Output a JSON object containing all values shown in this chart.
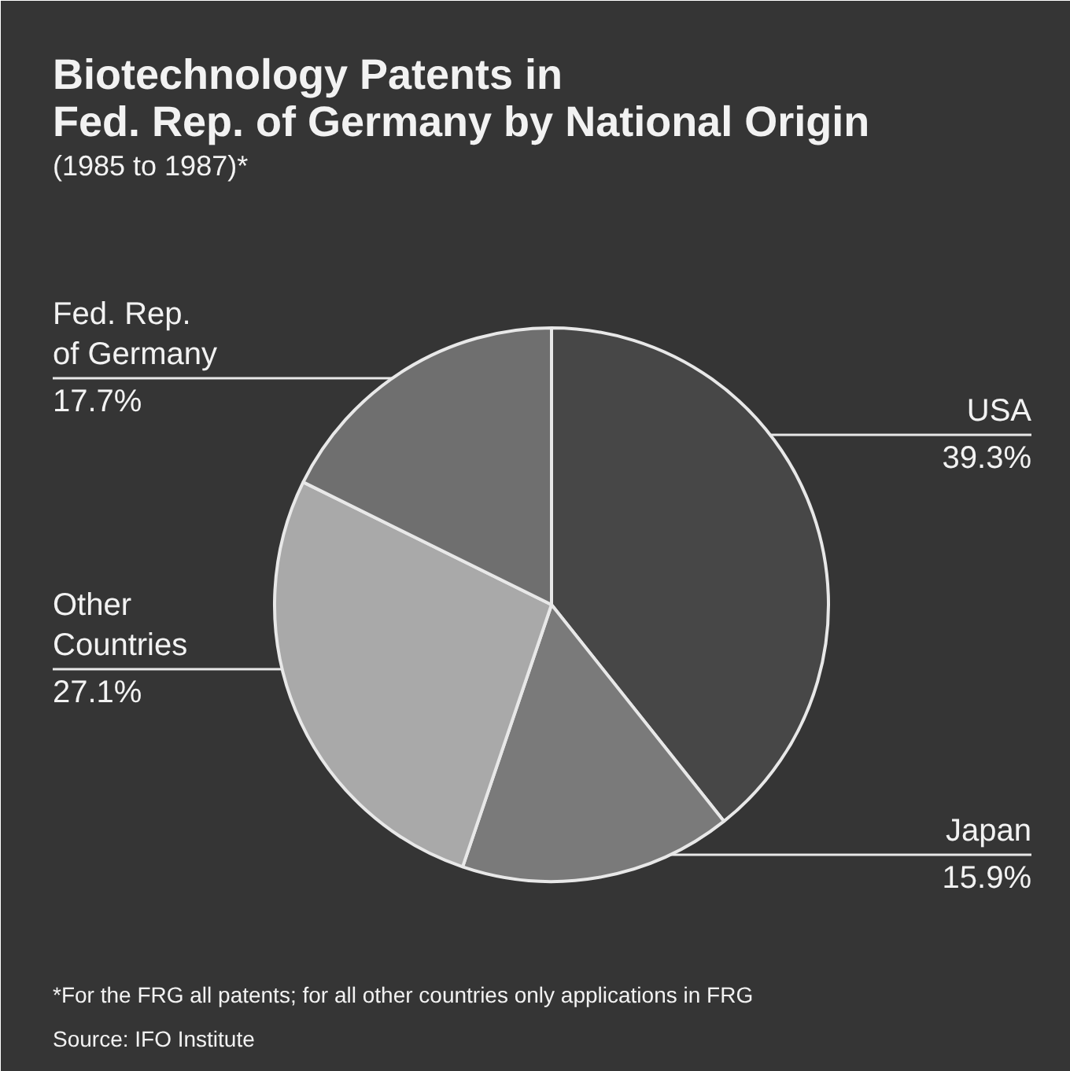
{
  "chart_data": {
    "type": "pie",
    "title": "Biotechnology Patents in\nFed. Rep. of Germany by National Origin",
    "subtitle": "(1985 to 1987)*",
    "categories": [
      "USA",
      "Japan",
      "Other\nCountries",
      "Fed. Rep.\nof Germany"
    ],
    "values": [
      39.3,
      15.9,
      27.1,
      17.7
    ],
    "value_labels": [
      "39.3%",
      "15.9%",
      "27.1%",
      "17.7%"
    ],
    "colors": [
      "#474747",
      "#7a7a7a",
      "#a9a9a9",
      "#6f6f6f"
    ],
    "annotations": [
      "*For the FRG all patents; for all other countries only applications in FRG",
      "Source: IFO Institute"
    ]
  }
}
